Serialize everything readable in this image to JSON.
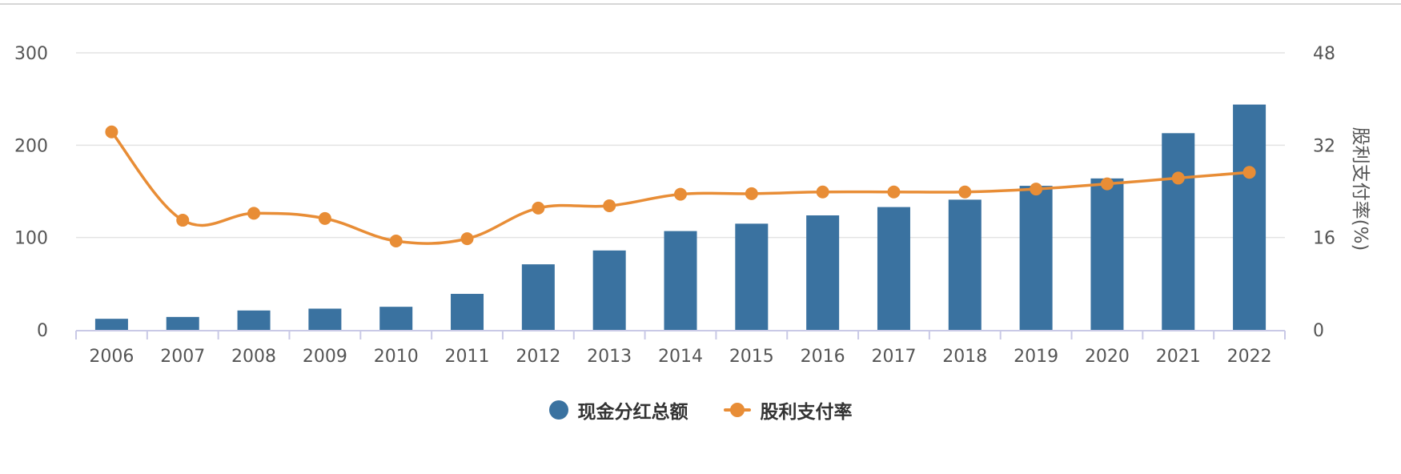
{
  "chart_data": {
    "type": "bar",
    "categories": [
      "2006",
      "2007",
      "2008",
      "2009",
      "2010",
      "2011",
      "2012",
      "2013",
      "2014",
      "2015",
      "2016",
      "2017",
      "2018",
      "2019",
      "2020",
      "2021",
      "2022"
    ],
    "series": [
      {
        "name": "现金分红总额",
        "type": "bar",
        "axis": "left",
        "color": "#3a72a0",
        "values": [
          12,
          14,
          21,
          23,
          25,
          39,
          71,
          86,
          107,
          115,
          124,
          133,
          141,
          156,
          164,
          213,
          244
        ]
      },
      {
        "name": "股利支付率",
        "type": "line",
        "axis": "right",
        "color": "#e88d36",
        "values": [
          34.3,
          19.0,
          20.2,
          19.3,
          15.4,
          15.8,
          21.1,
          21.5,
          23.5,
          23.6,
          23.9,
          23.9,
          23.9,
          24.4,
          25.3,
          26.3,
          27.3
        ]
      }
    ],
    "y_left": {
      "ticks": [
        "0",
        "100",
        "200",
        "300"
      ],
      "range": [
        0,
        300
      ],
      "label": ""
    },
    "y_right": {
      "ticks": [
        "0",
        "16",
        "32",
        "48"
      ],
      "range": [
        0,
        48
      ],
      "label": "股利支付率(%)"
    },
    "grid": true,
    "legend_position": "bottom"
  }
}
